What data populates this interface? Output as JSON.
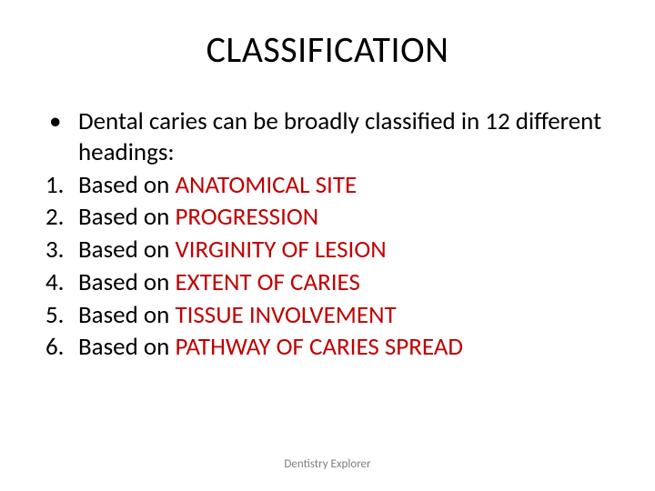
{
  "slide": {
    "title": "CLASSIFICATION",
    "title_color": "#000000",
    "title_fontsize": 40,
    "background_color": "#ffffff",
    "body_color": "#000000",
    "body_fontsize": 27,
    "emphasis_color": "#c00000",
    "bullet": {
      "marker": "•",
      "text": "Dental caries can be broadly classified in 12 different headings:"
    },
    "items": [
      {
        "num": "1.",
        "prefix": "Based on ",
        "emphasis": "ANATOMICAL SITE"
      },
      {
        "num": "2.",
        "prefix": "Based on ",
        "emphasis": "PROGRESSION"
      },
      {
        "num": "3.",
        "prefix": "Based on ",
        "emphasis": "VIRGINITY OF LESION"
      },
      {
        "num": "4.",
        "prefix": "Based on ",
        "emphasis": "EXTENT OF CARIES"
      },
      {
        "num": "5.",
        "prefix": "Based on ",
        "emphasis": "TISSUE INVOLVEMENT"
      },
      {
        "num": "6.",
        "prefix": "Based on ",
        "emphasis": "PATHWAY OF CARIES SPREAD"
      }
    ],
    "footer": "Dentistry Explorer",
    "footer_color": "#7f7f7f",
    "footer_fontsize": 13
  }
}
